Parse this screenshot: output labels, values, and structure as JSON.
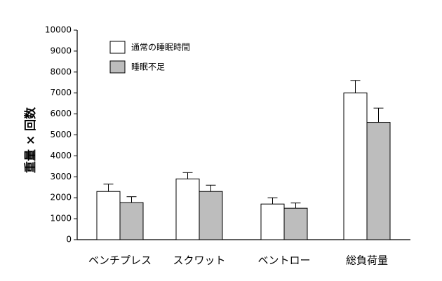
{
  "chart_data": {
    "type": "bar",
    "title": "",
    "xlabel": "",
    "ylabel": "重量 × 回数",
    "ylim": [
      0,
      10000
    ],
    "yticks": [
      0,
      1000,
      2000,
      3000,
      4000,
      5000,
      6000,
      7000,
      8000,
      9000,
      10000
    ],
    "categories": [
      "ベンチプレス",
      "スクワット",
      "ベントロー",
      "総負荷量"
    ],
    "series": [
      {
        "name": "通常の睡眠時間",
        "values": [
          2300,
          2900,
          1700,
          7000
        ],
        "errors": [
          350,
          300,
          300,
          600
        ],
        "color": "#ffffff"
      },
      {
        "name": "睡眠不足",
        "values": [
          1770,
          2300,
          1500,
          5600
        ],
        "errors": [
          280,
          300,
          250,
          680
        ],
        "color": "#bdbdbd"
      }
    ],
    "legend_position": "top-left",
    "grid": false
  }
}
